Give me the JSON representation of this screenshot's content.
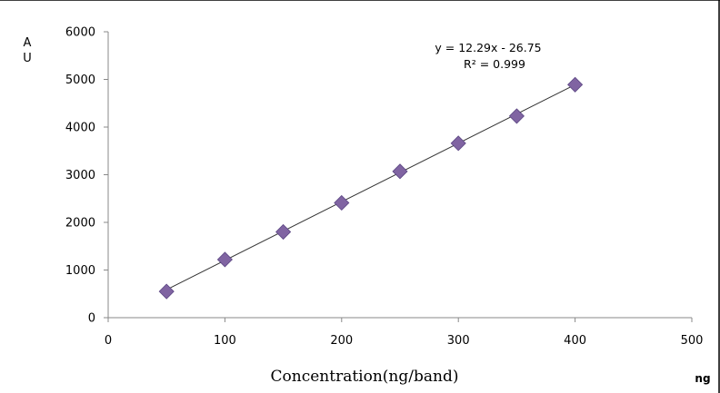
{
  "chart_data": {
    "type": "scatter",
    "x": [
      50,
      100,
      150,
      200,
      250,
      300,
      350,
      400
    ],
    "y": [
      550,
      1220,
      1800,
      2410,
      3070,
      3660,
      4230,
      4890
    ],
    "xlim": [
      0,
      500
    ],
    "ylim": [
      0,
      6000
    ],
    "x_ticks": [
      0,
      100,
      200,
      300,
      400,
      500
    ],
    "y_ticks": [
      0,
      1000,
      2000,
      3000,
      4000,
      5000,
      6000
    ],
    "x_tick_labels": [
      "0",
      "100",
      "200",
      "300",
      "400",
      "500"
    ],
    "y_tick_labels": [
      "0",
      "1000",
      "2000",
      "3000",
      "4000",
      "5000",
      "6000"
    ],
    "xlabel": "Concentration(ng/band)",
    "ylabel_lines": [
      "A",
      "U"
    ],
    "x_unit": "ng",
    "trendline": {
      "slope": 12.29,
      "intercept": -26.75,
      "x_range": [
        50,
        400
      ]
    },
    "equation": "y = 12.29x - 26.75",
    "r_squared": "R² = 0.999",
    "grid": false,
    "legend": "none",
    "marker_color": "#8064a2",
    "line_color": "#333333"
  }
}
